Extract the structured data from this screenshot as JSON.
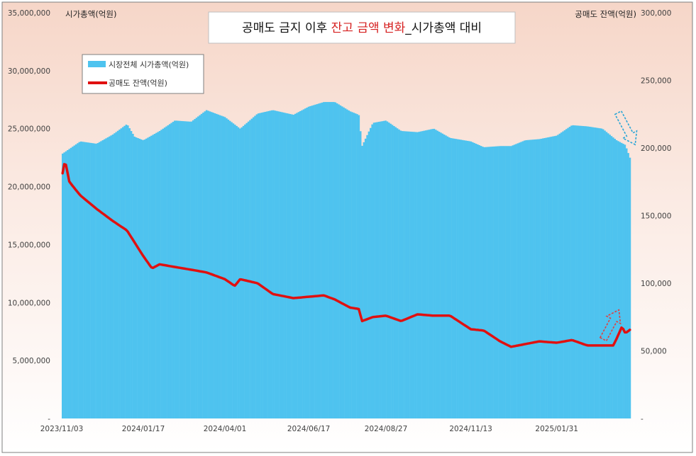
{
  "chart_data": {
    "type": "bar+line",
    "title_parts": [
      "공매도 금지 이후 ",
      "잔고 금액 변화",
      "_시가총액 대비"
    ],
    "ylabel_left": "시가총액(억원)",
    "ylabel_right": "공매도 잔액(억원)",
    "ylim_left": [
      0,
      35000000
    ],
    "ylim_right": [
      0,
      300000
    ],
    "yticks_left": [
      "-",
      "5,000,000",
      "10,000,000",
      "15,000,000",
      "20,000,000",
      "25,000,000",
      "30,000,000",
      "35,000,000"
    ],
    "yticks_right": [
      "-",
      "50,000",
      "100,000",
      "150,000",
      "200,000",
      "250,000",
      "300,000"
    ],
    "xticks": [
      "2023/11/03",
      "2024/01/17",
      "2024/04/01",
      "2024/06/17",
      "2024/08/27",
      "2024/11/13",
      "2025/01/31"
    ],
    "legend_position": "top-left",
    "grid": false,
    "colors": {
      "bars": "#4ec3ef",
      "line": "#e01010",
      "arrow_blue": "#2aa6d6",
      "arrow_red": "#e04040"
    },
    "series": [
      {
        "name": "시장전체 시가총액(억원)",
        "kind": "bar",
        "x": [
          "2023/11/03",
          "2023/11/20",
          "2023/12/05",
          "2023/12/20",
          "2024/01/02",
          "2024/01/09",
          "2024/01/17",
          "2024/02/01",
          "2024/02/15",
          "2024/03/01",
          "2024/03/15",
          "2024/04/01",
          "2024/04/15",
          "2024/05/01",
          "2024/05/15",
          "2024/06/03",
          "2024/06/17",
          "2024/07/01",
          "2024/07/11",
          "2024/07/25",
          "2024/08/02",
          "2024/08/05",
          "2024/08/15",
          "2024/08/27",
          "2024/09/10",
          "2024/09/25",
          "2024/10/10",
          "2024/10/25",
          "2024/11/13",
          "2024/11/25",
          "2024/12/10",
          "2024/12/20",
          "2025/01/02",
          "2025/01/15",
          "2025/01/31",
          "2025/02/14",
          "2025/02/28",
          "2025/03/14",
          "2025/03/27",
          "2025/04/04",
          "2025/04/09"
        ],
        "values": [
          22800000,
          23900000,
          23700000,
          24500000,
          25400000,
          24300000,
          24000000,
          24800000,
          25700000,
          25600000,
          26600000,
          26000000,
          25000000,
          26300000,
          26600000,
          26200000,
          26900000,
          27300000,
          27300000,
          26500000,
          26200000,
          23500000,
          25500000,
          25700000,
          24800000,
          24700000,
          25000000,
          24200000,
          23900000,
          23400000,
          23500000,
          23500000,
          24000000,
          24100000,
          24400000,
          25300000,
          25200000,
          25000000,
          24000000,
          23600000,
          22300000
        ]
      },
      {
        "name": "공매도 잔액(억원)",
        "kind": "line",
        "x": [
          "2023/11/03",
          "2023/11/06",
          "2023/11/10",
          "2023/11/20",
          "2023/12/05",
          "2023/12/20",
          "2024/01/02",
          "2024/01/17",
          "2024/01/25",
          "2024/02/01",
          "2024/02/15",
          "2024/03/01",
          "2024/03/15",
          "2024/04/01",
          "2024/04/10",
          "2024/04/15",
          "2024/05/01",
          "2024/05/15",
          "2024/06/03",
          "2024/06/17",
          "2024/07/01",
          "2024/07/11",
          "2024/07/25",
          "2024/08/02",
          "2024/08/05",
          "2024/08/15",
          "2024/08/27",
          "2024/09/10",
          "2024/09/25",
          "2024/10/10",
          "2024/10/25",
          "2024/11/13",
          "2024/11/25",
          "2024/12/10",
          "2024/12/20",
          "2025/01/02",
          "2025/01/15",
          "2025/01/31",
          "2025/02/14",
          "2025/02/28",
          "2025/03/14",
          "2025/03/24",
          "2025/03/27",
          "2025/04/01",
          "2025/04/04",
          "2025/04/09"
        ],
        "values": [
          178000,
          191000,
          175000,
          165000,
          155000,
          146000,
          139000,
          120000,
          111000,
          114000,
          112000,
          110000,
          108000,
          103000,
          98000,
          103000,
          100000,
          92000,
          89000,
          90000,
          91000,
          88000,
          82000,
          81000,
          72000,
          75000,
          76000,
          72000,
          77000,
          76000,
          76000,
          66000,
          65000,
          57000,
          53000,
          55000,
          57000,
          56000,
          58000,
          54000,
          54000,
          54000,
          59000,
          68000,
          63000,
          66000
        ]
      }
    ]
  }
}
